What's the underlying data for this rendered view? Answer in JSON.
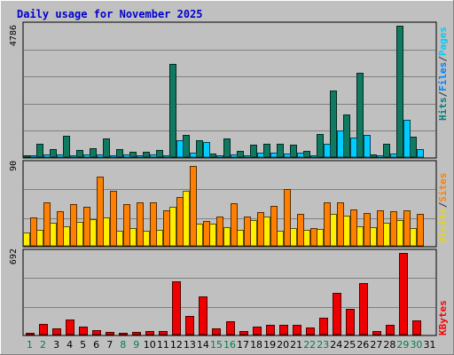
{
  "chart_data": [
    {
      "type": "bar",
      "title": "Daily usage for November 2025",
      "categories": [
        "1",
        "2",
        "3",
        "4",
        "5",
        "6",
        "7",
        "8",
        "9",
        "10",
        "11",
        "12",
        "13",
        "14",
        "15",
        "16",
        "17",
        "18",
        "19",
        "20",
        "21",
        "22",
        "23",
        "24",
        "25",
        "26",
        "27",
        "28",
        "29",
        "30",
        "31"
      ],
      "weekend_days": [
        "1",
        "2",
        "8",
        "9",
        "15",
        "16",
        "22",
        "23",
        "29",
        "30"
      ],
      "ylim": [
        0,
        4786
      ],
      "axis_max_label": "4786",
      "series_labels": [
        {
          "text": "Hits",
          "color": "#008080"
        },
        {
          "text": "/",
          "color": "#333333"
        },
        {
          "text": "Files",
          "color": "#0080ff"
        },
        {
          "text": "/",
          "color": "#333333"
        },
        {
          "text": "Pages",
          "color": "#00ccff"
        }
      ],
      "series": [
        {
          "key": "hits",
          "color": "#0f7a60",
          "values": [
            60,
            500,
            280,
            760,
            250,
            310,
            680,
            300,
            210,
            180,
            270,
            3400,
            810,
            600,
            140,
            670,
            220,
            440,
            480,
            470,
            460,
            230,
            850,
            2420,
            1540,
            3070,
            90,
            470,
            4786,
            730,
            0
          ]
        },
        {
          "key": "files",
          "color": "#00ccff",
          "values": [
            30,
            90,
            90,
            70,
            90,
            90,
            60,
            90,
            70,
            110,
            70,
            600,
            160,
            560,
            60,
            100,
            30,
            170,
            150,
            140,
            160,
            40,
            480,
            980,
            710,
            800,
            30,
            120,
            1360,
            300,
            0
          ]
        }
      ]
    },
    {
      "type": "bar",
      "ylim": [
        0,
        90
      ],
      "axis_max_label": "90",
      "series_labels": [
        {
          "text": "Visits",
          "color": "#e8d800"
        },
        {
          "text": "/",
          "color": "#333333"
        },
        {
          "text": "Sites",
          "color": "#ff8000"
        }
      ],
      "series": [
        {
          "key": "visits",
          "color": "#ffee00",
          "values": [
            15,
            18,
            25,
            22,
            26,
            29,
            31,
            17,
            20,
            17,
            18,
            43,
            61,
            24,
            24,
            21,
            18,
            28,
            32,
            17,
            20,
            18,
            19,
            35,
            33,
            22,
            21,
            25,
            28,
            20,
            0
          ]
        },
        {
          "key": "sites",
          "color": "#ff8000",
          "values": [
            31,
            48,
            38,
            46,
            43,
            76,
            61,
            46,
            48,
            48,
            39,
            54,
            88,
            27,
            32,
            47,
            32,
            37,
            44,
            63,
            35,
            20,
            48,
            48,
            40,
            36,
            39,
            38,
            39,
            35,
            0
          ]
        }
      ]
    },
    {
      "type": "bar",
      "ylim": [
        0,
        692
      ],
      "axis_max_label": "692",
      "series_labels": [
        {
          "text": "KBytes",
          "color": "#ff0000"
        }
      ],
      "series": [
        {
          "key": "kbytes",
          "color": "#ee0000",
          "values": [
            10,
            90,
            50,
            130,
            70,
            40,
            25,
            15,
            25,
            30,
            30,
            450,
            160,
            320,
            50,
            110,
            30,
            70,
            80,
            80,
            80,
            60,
            140,
            350,
            220,
            440,
            30,
            80,
            692,
            120,
            0
          ]
        }
      ]
    }
  ]
}
